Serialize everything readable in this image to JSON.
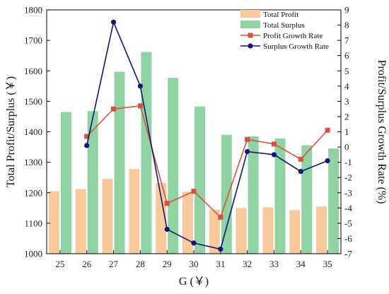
{
  "chart_data": {
    "type": "bar",
    "categories": [
      "25",
      "26",
      "27",
      "28",
      "29",
      "30",
      "31",
      "32",
      "33",
      "34",
      "35"
    ],
    "series": [
      {
        "name": "Total Profit",
        "kind": "bar",
        "axis": "left",
        "color": "#f7c99b",
        "values": [
          1205,
          1212,
          1245,
          1278,
          1232,
          1203,
          1145,
          1150,
          1152,
          1143,
          1155
        ]
      },
      {
        "name": "Total Surplus",
        "kind": "bar",
        "axis": "left",
        "color": "#8fd3a3",
        "values": [
          1465,
          1468,
          1597,
          1662,
          1577,
          1483,
          1390,
          1385,
          1378,
          1356,
          1345
        ]
      },
      {
        "name": "Profit Growth Rate",
        "kind": "line",
        "axis": "right",
        "color": "#d9503f",
        "marker": "square",
        "values": [
          null,
          0.7,
          2.5,
          2.7,
          -3.7,
          -2.9,
          -4.6,
          0.5,
          0.2,
          -0.8,
          1.1
        ]
      },
      {
        "name": "Surplus Growth Rate",
        "kind": "line",
        "axis": "right",
        "color": "#14147a",
        "marker": "circle",
        "values": [
          null,
          0.1,
          8.2,
          4.0,
          -5.4,
          -6.3,
          -6.7,
          -0.3,
          -0.5,
          -1.6,
          -0.9
        ]
      }
    ],
    "xlabel": "G (￥)",
    "ylabel": "Total Profit/Surplus (￥)",
    "ylabel_right": "Profit/Surplus Growth Rate (%)",
    "ylim": [
      1000,
      1800
    ],
    "yticks": [
      "1000",
      "1100",
      "1200",
      "1300",
      "1400",
      "1500",
      "1600",
      "1700",
      "1800"
    ],
    "ylim_right": [
      -7,
      9
    ],
    "yticks_right": [
      "-7",
      "-6",
      "-5",
      "-4",
      "-3",
      "-2",
      "-1",
      "0",
      "1",
      "2",
      "3",
      "4",
      "5",
      "6",
      "7",
      "8",
      "9"
    ],
    "legend_position": "top-right",
    "grid": false
  }
}
